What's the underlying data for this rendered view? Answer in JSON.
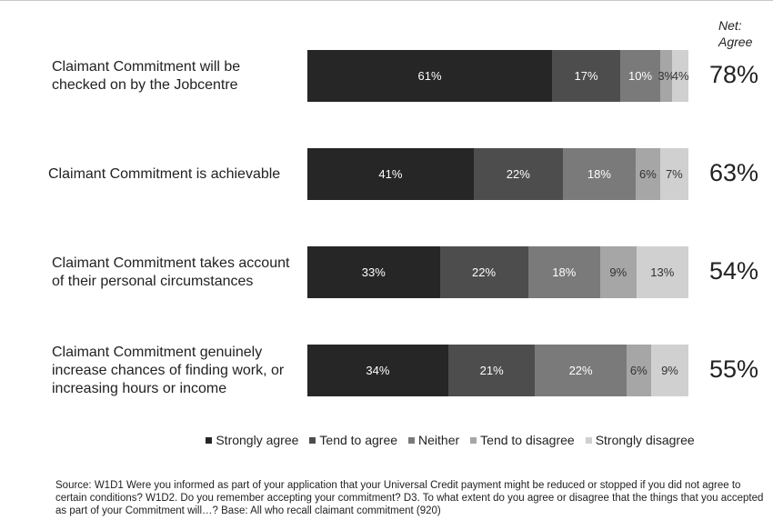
{
  "chart_data": {
    "type": "bar",
    "orientation": "horizontal",
    "stacked": true,
    "categories": [
      "Claimant Commitment will be checked on by the Jobcentre",
      "Claimant Commitment is achievable",
      "Claimant Commitment takes account of their personal circumstances",
      "Claimant Commitment genuinely increase chances of finding work, or increasing hours or income"
    ],
    "category_lines": [
      [
        "Claimant Commitment will be",
        "checked on by the Jobcentre"
      ],
      [
        "Claimant Commitment is achievable"
      ],
      [
        "Claimant Commitment takes account",
        "of their personal circumstances"
      ],
      [
        "Claimant Commitment genuinely",
        "increase chances of finding work, or",
        "increasing hours or income"
      ]
    ],
    "series": [
      {
        "name": "Strongly agree",
        "color": "#262626",
        "text_color": "#ffffff",
        "values": [
          61,
          41,
          33,
          34
        ]
      },
      {
        "name": "Tend to agree",
        "color": "#4d4d4d",
        "text_color": "#ffffff",
        "values": [
          17,
          22,
          22,
          21
        ]
      },
      {
        "name": "Neither",
        "color": "#7a7a7a",
        "text_color": "#ffffff",
        "values": [
          10,
          18,
          18,
          22
        ]
      },
      {
        "name": "Tend to disagree",
        "color": "#a6a6a6",
        "text_color": "#333333",
        "values": [
          3,
          6,
          9,
          6
        ]
      },
      {
        "name": "Strongly disagree",
        "color": "#d0d0d0",
        "text_color": "#333333",
        "values": [
          4,
          7,
          13,
          9
        ]
      }
    ],
    "net_agree_header": [
      "Net:",
      "Agree"
    ],
    "net_agree": [
      "78%",
      "63%",
      "54%",
      "55%"
    ],
    "value_suffix": "%",
    "legend_position": "bottom",
    "grid": false
  },
  "source_note": "Source: W1D1 Were you informed as part of your application that your Universal Credit payment might be reduced or stopped if you did not agree to certain conditions? W1D2. Do you remember accepting your commitment? D3. To what extent do you agree or disagree that the things that you accepted as part of your Commitment will…? Base: All who recall claimant commitment (920)"
}
